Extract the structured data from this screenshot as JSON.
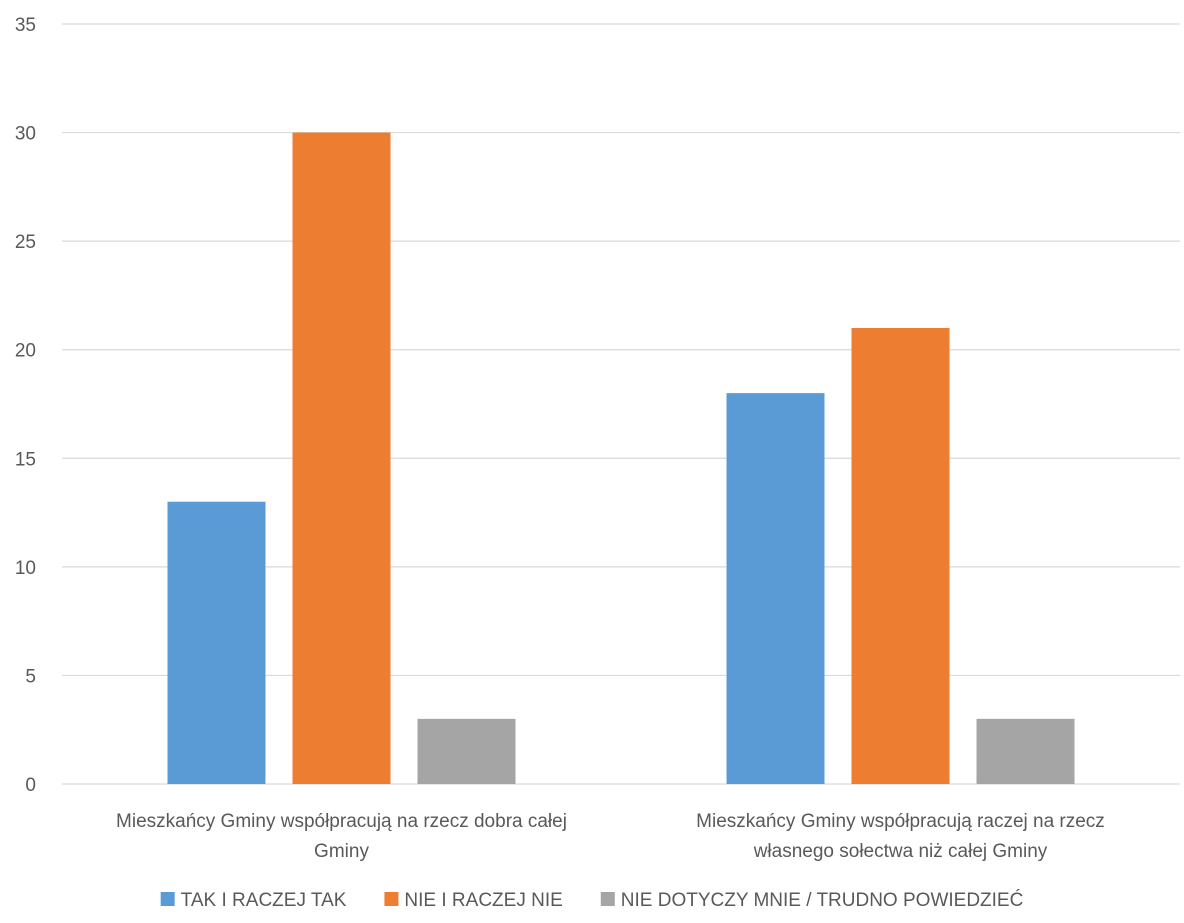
{
  "chart_data": {
    "type": "bar",
    "title": "",
    "xlabel": "",
    "ylabel": "",
    "ylim": [
      0,
      35
    ],
    "yticks": [
      0,
      5,
      10,
      15,
      20,
      25,
      30,
      35
    ],
    "grid": true,
    "legend_position": "bottom",
    "categories": [
      [
        "Mieszkańcy Gminy współpracują na rzecz dobra całej",
        "Gminy"
      ],
      [
        "Mieszkańcy Gminy współpracują raczej na rzecz",
        "własnego sołectwa niż całej Gminy"
      ]
    ],
    "series": [
      {
        "name": "TAK I RACZEJ TAK",
        "color": "#5B9BD5",
        "values": [
          13,
          18
        ]
      },
      {
        "name": "NIE I RACZEJ NIE",
        "color": "#ED7D31",
        "values": [
          30,
          21
        ]
      },
      {
        "name": "NIE DOTYCZY MNIE / TRUDNO POWIEDZIEĆ",
        "color": "#A5A5A5",
        "values": [
          3,
          3
        ]
      }
    ],
    "colors": {
      "grid": "#D9D9D9",
      "text": "#595959"
    }
  }
}
